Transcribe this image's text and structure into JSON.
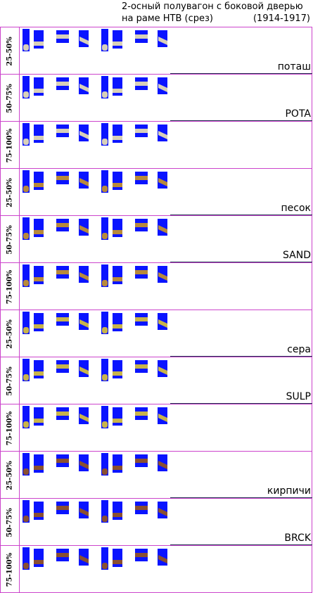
{
  "title": {
    "line1": "2-осный полувагон с боковой дверью",
    "line2": "на раме НТВ (срез)",
    "years": "(1914-1917)"
  },
  "rows": [
    {
      "pct": "25-50%",
      "cargo": "поташ",
      "cargo_key": "pota"
    },
    {
      "pct": "50-75%",
      "cargo": "POTA",
      "cargo_key": "pota"
    },
    {
      "pct": "75-100%",
      "cargo": "",
      "cargo_key": "pota"
    },
    {
      "pct": "25-50%",
      "cargo": "песок",
      "cargo_key": "sand"
    },
    {
      "pct": "50-75%",
      "cargo": "SAND",
      "cargo_key": "sand"
    },
    {
      "pct": "75-100%",
      "cargo": "",
      "cargo_key": "sand"
    },
    {
      "pct": "25-50%",
      "cargo": "сера",
      "cargo_key": "sulp"
    },
    {
      "pct": "50-75%",
      "cargo": "SULP",
      "cargo_key": "sulp"
    },
    {
      "pct": "75-100%",
      "cargo": "",
      "cargo_key": "sulp"
    },
    {
      "pct": "25-50%",
      "cargo": "кирпичи",
      "cargo_key": "brck"
    },
    {
      "pct": "50-75%",
      "cargo": "BRCK",
      "cargo_key": "brck"
    },
    {
      "pct": "75-100%",
      "cargo": "",
      "cargo_key": "brck"
    }
  ],
  "sprite_views": [
    "tall",
    "mid",
    "wide",
    "diag",
    "tall",
    "mid",
    "wide",
    "diag"
  ],
  "colors": {
    "grid": "#cc44cc",
    "sprite_background": "#0a14ff"
  }
}
